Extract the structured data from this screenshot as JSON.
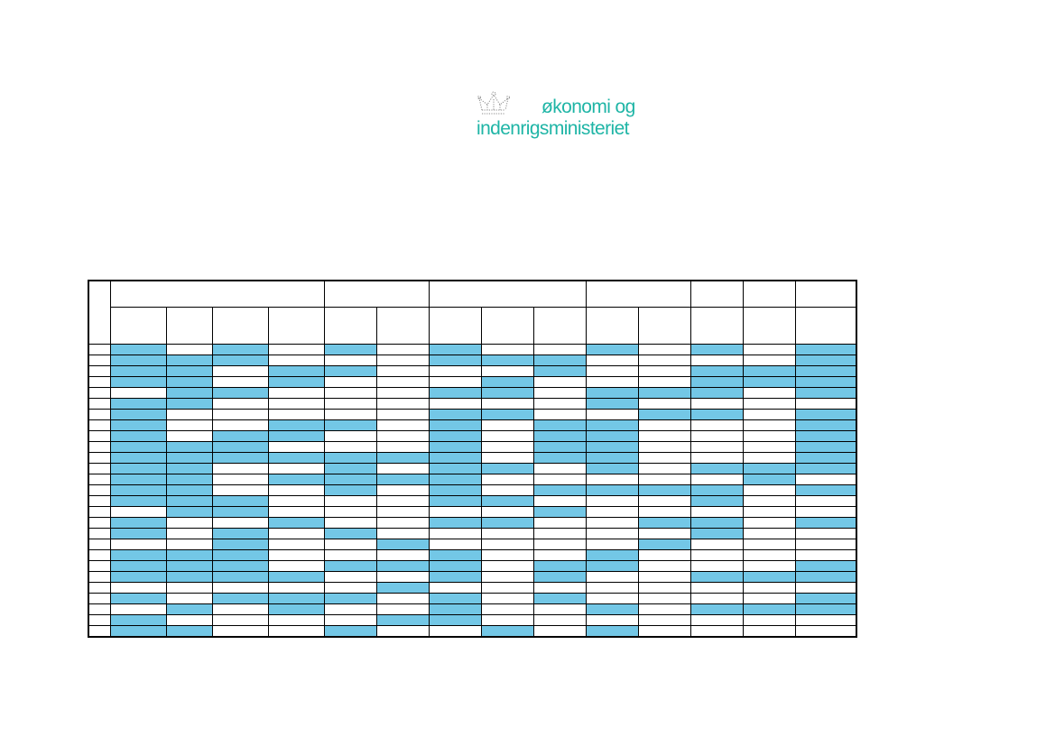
{
  "logo": {
    "line1": "økonomi og",
    "line2": "indenrigsministeriet",
    "icon": "crown-icon",
    "color": "#1fb5a6"
  },
  "table": {
    "fill_color": "#73c7e6",
    "group_spans": [
      4,
      2,
      3,
      2,
      1,
      1,
      1
    ],
    "column_count": 14,
    "rows": [
      [
        1,
        0,
        1,
        0,
        1,
        0,
        1,
        0,
        0,
        1,
        0,
        1,
        0,
        1
      ],
      [
        1,
        1,
        1,
        0,
        0,
        0,
        1,
        1,
        1,
        0,
        0,
        0,
        0,
        1
      ],
      [
        1,
        1,
        0,
        1,
        1,
        0,
        0,
        0,
        1,
        0,
        0,
        1,
        1,
        1
      ],
      [
        1,
        1,
        0,
        1,
        0,
        0,
        0,
        1,
        0,
        0,
        0,
        1,
        1,
        1
      ],
      [
        0,
        1,
        1,
        0,
        0,
        0,
        1,
        1,
        0,
        1,
        1,
        1,
        0,
        1
      ],
      [
        1,
        1,
        0,
        0,
        0,
        0,
        0,
        0,
        0,
        1,
        0,
        0,
        0,
        0
      ],
      [
        1,
        0,
        0,
        0,
        0,
        0,
        1,
        1,
        0,
        0,
        1,
        1,
        0,
        1
      ],
      [
        1,
        0,
        0,
        1,
        1,
        0,
        1,
        0,
        1,
        1,
        0,
        0,
        0,
        1
      ],
      [
        1,
        0,
        1,
        1,
        0,
        0,
        1,
        0,
        1,
        1,
        0,
        0,
        0,
        1
      ],
      [
        1,
        1,
        1,
        0,
        0,
        0,
        1,
        0,
        1,
        1,
        0,
        0,
        0,
        1
      ],
      [
        1,
        1,
        1,
        1,
        1,
        1,
        1,
        0,
        1,
        1,
        0,
        0,
        0,
        1
      ],
      [
        1,
        1,
        0,
        0,
        1,
        0,
        1,
        1,
        0,
        1,
        0,
        1,
        1,
        1
      ],
      [
        1,
        1,
        0,
        1,
        1,
        1,
        1,
        0,
        0,
        0,
        0,
        0,
        1,
        0
      ],
      [
        1,
        1,
        0,
        0,
        1,
        0,
        1,
        0,
        1,
        1,
        1,
        1,
        0,
        1
      ],
      [
        1,
        1,
        1,
        0,
        0,
        0,
        1,
        1,
        0,
        0,
        0,
        1,
        0,
        0
      ],
      [
        0,
        1,
        1,
        0,
        0,
        0,
        0,
        0,
        1,
        0,
        0,
        0,
        0,
        0
      ],
      [
        1,
        0,
        0,
        1,
        0,
        0,
        1,
        1,
        0,
        0,
        1,
        1,
        0,
        1
      ],
      [
        1,
        0,
        1,
        0,
        1,
        0,
        0,
        0,
        0,
        0,
        0,
        1,
        0,
        0
      ],
      [
        0,
        0,
        1,
        0,
        0,
        1,
        0,
        0,
        0,
        0,
        1,
        0,
        0,
        0
      ],
      [
        1,
        1,
        1,
        0,
        0,
        0,
        1,
        0,
        0,
        1,
        0,
        0,
        0,
        0
      ],
      [
        1,
        1,
        1,
        0,
        1,
        1,
        1,
        0,
        1,
        1,
        0,
        0,
        0,
        1
      ],
      [
        1,
        1,
        1,
        1,
        0,
        0,
        1,
        0,
        1,
        0,
        0,
        1,
        1,
        1
      ],
      [
        0,
        0,
        0,
        0,
        0,
        1,
        0,
        0,
        0,
        0,
        0,
        0,
        0,
        0
      ],
      [
        1,
        0,
        1,
        1,
        1,
        0,
        1,
        0,
        1,
        0,
        0,
        0,
        0,
        1
      ],
      [
        0,
        1,
        0,
        1,
        0,
        0,
        1,
        0,
        0,
        1,
        0,
        1,
        1,
        1
      ],
      [
        1,
        0,
        0,
        0,
        0,
        1,
        1,
        0,
        0,
        0,
        0,
        0,
        0,
        0
      ],
      [
        1,
        1,
        0,
        0,
        1,
        0,
        0,
        1,
        0,
        1,
        0,
        0,
        0,
        0
      ]
    ]
  }
}
